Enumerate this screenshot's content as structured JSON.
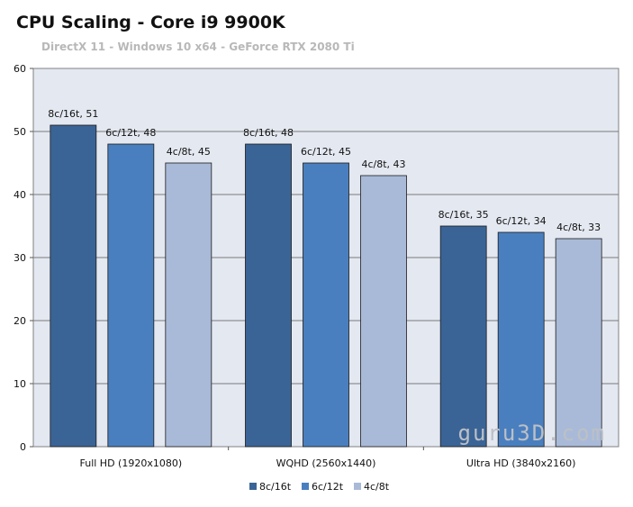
{
  "chart_data": {
    "type": "bar",
    "title": "CPU Scaling - Core i9 9900K",
    "subtitle": "DirectX 11 - Windows 10 x64  - GeForce RTX 2080 Ti",
    "categories": [
      "Full HD (1920x1080)",
      "WQHD (2560x1440)",
      "Ultra HD (3840x2160)"
    ],
    "series": [
      {
        "name": "8c/16t",
        "values": [
          51,
          48,
          35
        ],
        "color": "#3b6496"
      },
      {
        "name": "6c/12t",
        "values": [
          48,
          45,
          34
        ],
        "color": "#4a7fbf"
      },
      {
        "name": "4c/8t",
        "values": [
          45,
          43,
          33
        ],
        "color": "#a9bad8"
      }
    ],
    "ylim": [
      0,
      60
    ],
    "yticks": [
      0,
      10,
      20,
      30,
      40,
      50,
      60
    ],
    "grid": true,
    "legend": "bottom",
    "watermark": "guru3D.com"
  }
}
